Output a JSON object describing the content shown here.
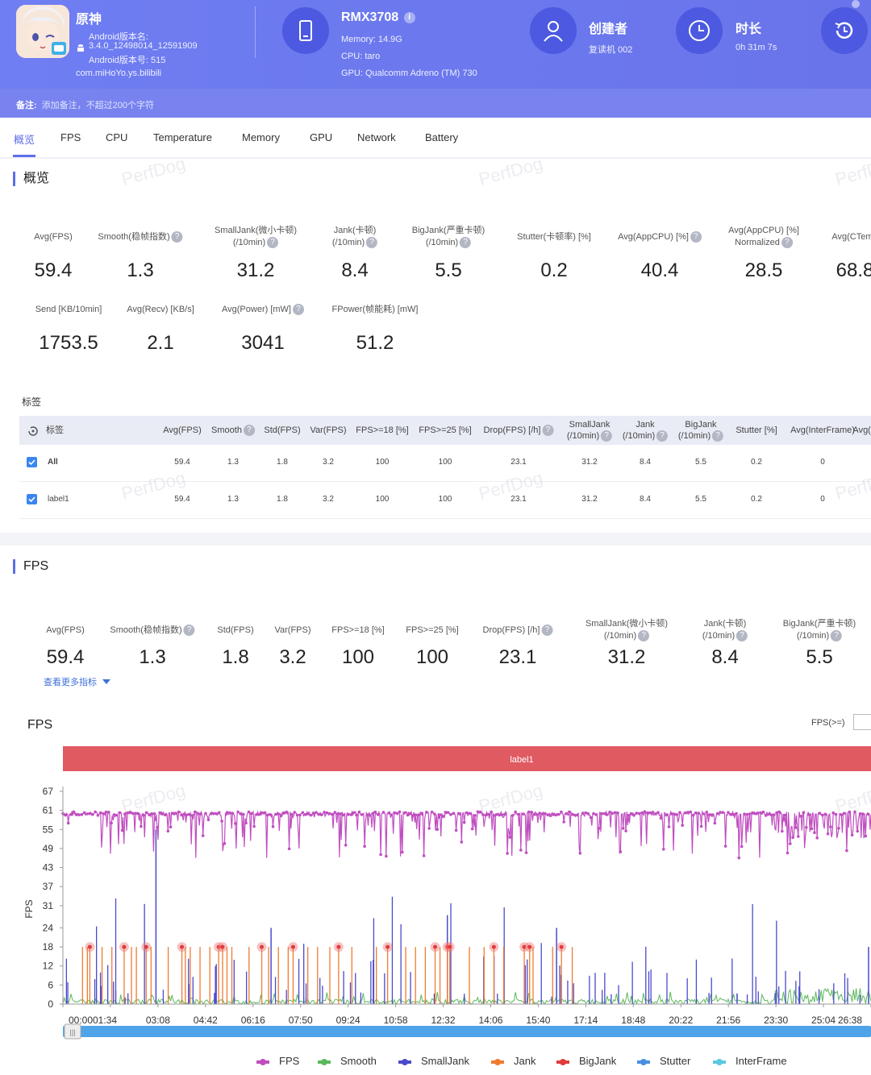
{
  "app": {
    "name": "原神",
    "version_name_label": "Android版本名:",
    "version_name": "3.4.0_12498014_12591909",
    "version_code_label": "Android版本号: 515",
    "package": "com.miHoYo.ys.bilibili"
  },
  "device": {
    "model": "RMX3708",
    "memory": "Memory: 14.9G",
    "cpu": "CPU: taro",
    "gpu": "GPU: Qualcomm Adreno (TM) 730"
  },
  "creator": {
    "label": "创建者",
    "value": "复读机 002"
  },
  "duration": {
    "label": "时长",
    "value": "0h 31m 7s"
  },
  "remark": {
    "label": "备注:",
    "placeholder": "添加备注，不超过200个字符"
  },
  "tabs": [
    "概览",
    "FPS",
    "CPU",
    "Temperature",
    "Memory",
    "GPU",
    "Network",
    "Battery"
  ],
  "overview": {
    "title": "概览",
    "row1": [
      {
        "label": "Avg(FPS)",
        "value": "59.4",
        "help": false
      },
      {
        "label": "Smooth(稳帧指数)",
        "value": "1.3",
        "help": true
      },
      {
        "label": "SmallJank(微小卡顿)",
        "label2": "(/10min)",
        "value": "31.2",
        "help": true
      },
      {
        "label": "Jank(卡顿)",
        "label2": "(/10min)",
        "value": "8.4",
        "help": true
      },
      {
        "label": "BigJank(严重卡顿)",
        "label2": "(/10min)",
        "value": "5.5",
        "help": true
      },
      {
        "label": "Stutter(卡顿率) [%]",
        "value": "0.2",
        "help": false
      },
      {
        "label": "Avg(AppCPU) [%]",
        "value": "40.4",
        "help": true
      },
      {
        "label": "Avg(AppCPU) [%]",
        "label2": "Normalized",
        "value": "28.5",
        "help": true
      },
      {
        "label": "Avg(CTemp",
        "value": "68.8",
        "help": false
      }
    ],
    "row2": [
      {
        "label": "Send [KB/10min]",
        "value": "1753.5",
        "help": false
      },
      {
        "label": "Avg(Recv) [KB/s]",
        "value": "2.1",
        "help": false
      },
      {
        "label": "Avg(Power) [mW]",
        "value": "3041",
        "help": true
      },
      {
        "label": "FPower(帧能耗) [mW]",
        "value": "51.2",
        "help": false
      }
    ]
  },
  "label_table": {
    "title": "标签",
    "headers": [
      {
        "l1": "标签",
        "l2": ""
      },
      {
        "l1": "Avg(FPS)",
        "l2": ""
      },
      {
        "l1": "Smooth",
        "l2": "",
        "help": true
      },
      {
        "l1": "Std(FPS)",
        "l2": ""
      },
      {
        "l1": "Var(FPS)",
        "l2": ""
      },
      {
        "l1": "FPS>=18 [%]",
        "l2": ""
      },
      {
        "l1": "FPS>=25 [%]",
        "l2": ""
      },
      {
        "l1": "Drop(FPS) [/h]",
        "l2": "",
        "help": true
      },
      {
        "l1": "SmallJank",
        "l2": "(/10min)",
        "help": true
      },
      {
        "l1": "Jank",
        "l2": "(/10min)",
        "help": true
      },
      {
        "l1": "BigJank",
        "l2": "(/10min)",
        "help": true
      },
      {
        "l1": "Stutter [%]",
        "l2": ""
      },
      {
        "l1": "Avg(InterFrame)",
        "l2": ""
      },
      {
        "l1": "Avg(F",
        "l2": ""
      }
    ],
    "rows": [
      {
        "name": "All",
        "cells": [
          "59.4",
          "1.3",
          "1.8",
          "3.2",
          "100",
          "100",
          "23.1",
          "31.2",
          "8.4",
          "5.5",
          "0.2",
          "0"
        ]
      },
      {
        "name": "label1",
        "cells": [
          "59.4",
          "1.3",
          "1.8",
          "3.2",
          "100",
          "100",
          "23.1",
          "31.2",
          "8.4",
          "5.5",
          "0.2",
          "0"
        ]
      }
    ]
  },
  "fps_section": {
    "title": "FPS",
    "metrics": [
      {
        "label": "Avg(FPS)",
        "value": "59.4",
        "help": false
      },
      {
        "label": "Smooth(稳帧指数)",
        "value": "1.3",
        "help": true
      },
      {
        "label": "Std(FPS)",
        "value": "1.8",
        "help": false
      },
      {
        "label": "Var(FPS)",
        "value": "3.2",
        "help": false
      },
      {
        "label": "FPS>=18 [%]",
        "value": "100",
        "help": false
      },
      {
        "label": "FPS>=25 [%]",
        "value": "100",
        "help": false
      },
      {
        "label": "Drop(FPS) [/h]",
        "value": "23.1",
        "help": true
      },
      {
        "label": "SmallJank(微小卡顿)",
        "label2": "(/10min)",
        "value": "31.2",
        "help": true
      },
      {
        "label": "Jank(卡顿)",
        "label2": "(/10min)",
        "value": "8.4",
        "help": true
      },
      {
        "label": "BigJank(严重卡顿)",
        "label2": "(/10min)",
        "value": "5.5",
        "help": true
      }
    ],
    "more_link": "查看更多指标",
    "chart_title": "FPS",
    "filter_label": "FPS(>=)",
    "label_bar": "label1"
  },
  "watermark": "PerfDog",
  "colors": {
    "fps": "#c04ec0",
    "smooth": "#5cb85c",
    "smalljank": "#4a4acc",
    "jank": "#f07b30",
    "bigjank": "#e03b3b",
    "stutter": "#4a8fe0",
    "interframe": "#5bc8e0",
    "label_bar": "#e05a62",
    "accent": "#5c6ee8"
  },
  "chart_data": {
    "type": "line",
    "ylabel": "FPS",
    "y_ticks": [
      "0",
      "6",
      "12",
      "18",
      "24",
      "31",
      "37",
      "43",
      "49",
      "55",
      "61",
      "67"
    ],
    "ylim": [
      0,
      67
    ],
    "x_ticks": [
      "00:00",
      "01:34",
      "03:08",
      "04:42",
      "06:16",
      "07:50",
      "09:24",
      "10:58",
      "12:32",
      "14:06",
      "15:40",
      "17:14",
      "18:48",
      "20:22",
      "21:56",
      "23:30",
      "25:04",
      "26:38"
    ],
    "x_range_seconds": [
      0,
      1650
    ],
    "legend": [
      {
        "name": "FPS",
        "color": "#c04ec0"
      },
      {
        "name": "Smooth",
        "color": "#5cb85c"
      },
      {
        "name": "SmallJank",
        "color": "#4a4acc"
      },
      {
        "name": "Jank",
        "color": "#f07b30"
      },
      {
        "name": "BigJank",
        "color": "#e03b3b"
      },
      {
        "name": "Stutter",
        "color": "#4a8fe0"
      },
      {
        "name": "InterFrame",
        "color": "#5bc8e0"
      }
    ],
    "fps_baseline": 60,
    "bigjank_times_s": [
      55,
      125,
      170,
      243,
      318,
      326,
      406,
      470,
      563,
      663,
      760,
      785,
      790,
      880,
      942,
      953,
      1018
    ],
    "jank_times_s": [
      40,
      50,
      80,
      100,
      140,
      150,
      180,
      215,
      250,
      260,
      280,
      300,
      335,
      345,
      380,
      420,
      440,
      460,
      500,
      520,
      545,
      590,
      640,
      700,
      720,
      740,
      770,
      830,
      860,
      900,
      960,
      1000,
      1040
    ]
  }
}
